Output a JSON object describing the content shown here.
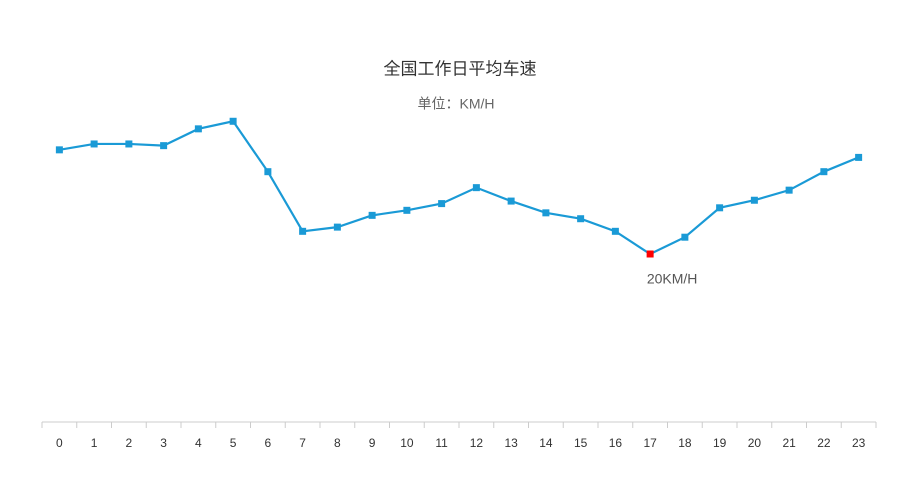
{
  "chart_data": {
    "type": "line",
    "title": "全国工作日平均车速",
    "subtitle": "单位：KM/H",
    "categories": [
      "0",
      "1",
      "2",
      "3",
      "4",
      "5",
      "6",
      "7",
      "8",
      "9",
      "10",
      "11",
      "12",
      "13",
      "14",
      "15",
      "16",
      "17",
      "18",
      "19",
      "20",
      "21",
      "22",
      "23"
    ],
    "series": [
      {
        "color": "#1a9ad6",
        "values": [
          32.4,
          33.1,
          33.1,
          32.9,
          34.9,
          35.8,
          29.8,
          22.7,
          23.2,
          24.6,
          25.2,
          26.0,
          27.9,
          26.3,
          24.9,
          24.2,
          22.7,
          20,
          22.0,
          25.5,
          26.4,
          27.6,
          29.8,
          31.5
        ],
        "value_labels": [
          null,
          null,
          null,
          null,
          null,
          null,
          null,
          null,
          null,
          null,
          null,
          null,
          null,
          null,
          null,
          null,
          null,
          "20KM/H",
          null,
          null,
          null,
          null,
          null,
          null
        ],
        "label_marker_color": "#ff0000"
      }
    ],
    "ylim": [
      0,
      38
    ]
  }
}
